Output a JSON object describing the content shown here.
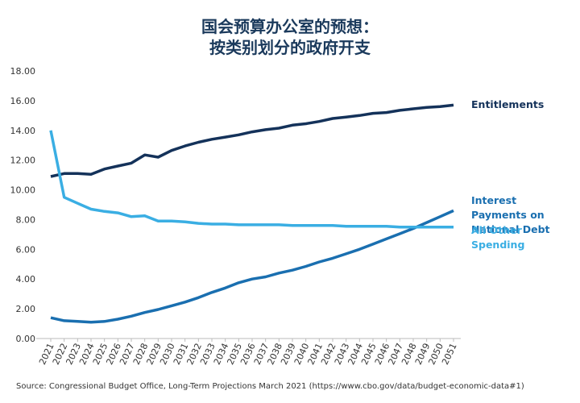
{
  "chart_data": {
    "type": "line",
    "title": [
      "国会预算办公室的预想：",
      "按类别划分的政府开支"
    ],
    "source": "Source: Congressional Budget Office, Long-Term Projections March 2021 (https://www.cbo.gov/data/budget-economic-data#1)",
    "categories": [
      "2021",
      "2022",
      "2023",
      "2024",
      "2025",
      "2026",
      "2027",
      "2028",
      "2029",
      "2030",
      "2031",
      "2032",
      "2033",
      "2034",
      "2035",
      "2036",
      "2037",
      "2038",
      "2039",
      "2040",
      "2041",
      "2042",
      "2043",
      "2044",
      "2045",
      "2046",
      "2047",
      "2048",
      "2049",
      "2050",
      "2051"
    ],
    "ylim": [
      0,
      18
    ],
    "yticks": [
      {
        "value": 0,
        "label": "0.00"
      },
      {
        "value": 2,
        "label": "2.00"
      },
      {
        "value": 4,
        "label": "4.00"
      },
      {
        "value": 6,
        "label": "6.00"
      },
      {
        "value": 8,
        "label": "8.00"
      },
      {
        "value": 10,
        "label": "10.00"
      },
      {
        "value": 12,
        "label": "12.00"
      },
      {
        "value": 14,
        "label": "14.00"
      },
      {
        "value": 16,
        "label": "16.00"
      },
      {
        "value": 18,
        "label": "18.00"
      }
    ],
    "grid": false,
    "series": [
      {
        "name": "Entitlements",
        "color": "#14325a",
        "values": [
          10.9,
          11.1,
          11.1,
          11.05,
          11.4,
          11.6,
          11.8,
          12.35,
          12.2,
          12.65,
          12.95,
          13.2,
          13.4,
          13.55,
          13.7,
          13.9,
          14.05,
          14.15,
          14.35,
          14.45,
          14.6,
          14.8,
          14.9,
          15.0,
          15.15,
          15.2,
          15.35,
          15.45,
          15.55,
          15.6,
          15.7
        ]
      },
      {
        "name": "Interest Payments on National Debt",
        "color": "#1a6fb0",
        "values": [
          1.4,
          1.2,
          1.15,
          1.1,
          1.15,
          1.3,
          1.5,
          1.75,
          1.95,
          2.2,
          2.45,
          2.75,
          3.1,
          3.4,
          3.75,
          4.0,
          4.15,
          4.4,
          4.6,
          4.85,
          5.15,
          5.4,
          5.7,
          6.0,
          6.35,
          6.7,
          7.05,
          7.4,
          7.8,
          8.2,
          8.6
        ]
      },
      {
        "name": "All Other Spending",
        "color": "#3aaee3",
        "values": [
          14.0,
          9.5,
          9.1,
          8.7,
          8.55,
          8.45,
          8.2,
          8.25,
          7.9,
          7.9,
          7.85,
          7.75,
          7.7,
          7.7,
          7.65,
          7.65,
          7.65,
          7.65,
          7.6,
          7.6,
          7.6,
          7.6,
          7.55,
          7.55,
          7.55,
          7.55,
          7.5,
          7.5,
          7.5,
          7.5,
          7.5
        ]
      }
    ]
  }
}
